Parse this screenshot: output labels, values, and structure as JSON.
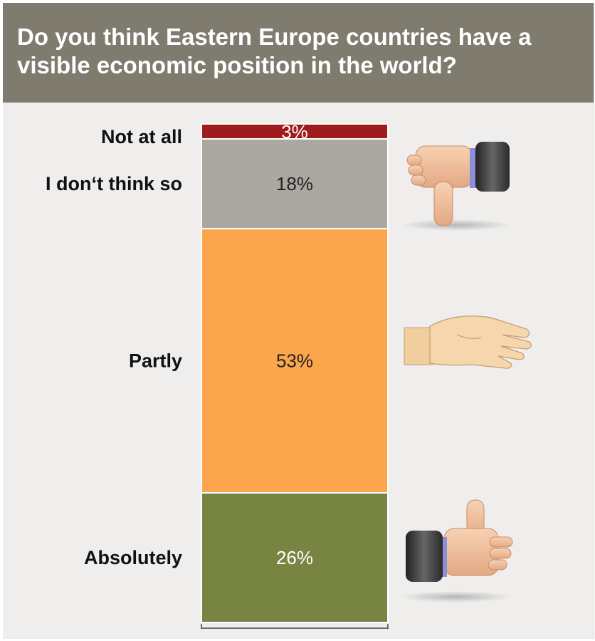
{
  "header": {
    "title": "Do you think Eastern Europe countries have a visible economic position in the world?"
  },
  "chart_data": {
    "type": "bar",
    "stacked": true,
    "orientation": "vertical",
    "categories": [
      "Not at all",
      "I don‘t think so",
      "Partly",
      "Absolutely"
    ],
    "values": [
      3,
      18,
      53,
      26
    ],
    "value_labels": [
      "3%",
      "18%",
      "53%",
      "26%"
    ],
    "colors": [
      "#9e1c1e",
      "#aaa8a0",
      "#fba54c",
      "#788442"
    ],
    "label_colors": [
      "#ffffff",
      "#222222",
      "#222222",
      "#ffffff"
    ],
    "icons": [
      "thumbs-down-icon",
      "flat-hand-icon",
      "thumbs-up-icon"
    ],
    "title": "Do you think Eastern Europe countries have a visible economic position in the world?"
  }
}
